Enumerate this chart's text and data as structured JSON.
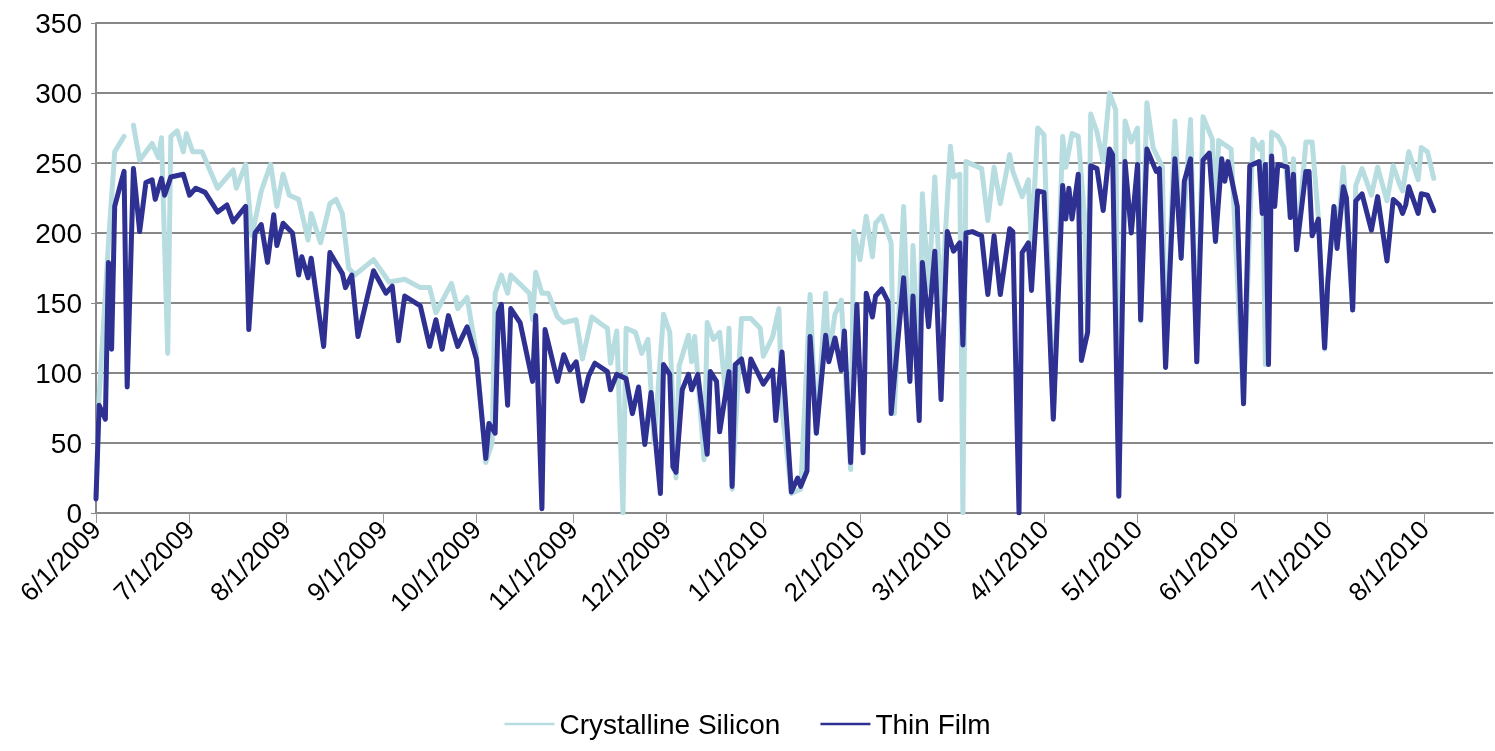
{
  "chart_data": {
    "type": "line",
    "xlim": [
      "2009-06-01",
      "2010-08-23"
    ],
    "xticks": [
      {
        "value": "2009-06-01",
        "label": "6/1/2009"
      },
      {
        "value": "2009-07-01",
        "label": "7/1/2009"
      },
      {
        "value": "2009-08-01",
        "label": "8/1/2009"
      },
      {
        "value": "2009-09-01",
        "label": "9/1/2009"
      },
      {
        "value": "2009-10-01",
        "label": "10/1/2009"
      },
      {
        "value": "2009-11-01",
        "label": "11/1/2009"
      },
      {
        "value": "2009-12-01",
        "label": "12/1/2009"
      },
      {
        "value": "2010-01-01",
        "label": "1/1/2010"
      },
      {
        "value": "2010-02-01",
        "label": "2/1/2010"
      },
      {
        "value": "2010-03-01",
        "label": "3/1/2010"
      },
      {
        "value": "2010-04-01",
        "label": "4/1/2010"
      },
      {
        "value": "2010-05-01",
        "label": "5/1/2010"
      },
      {
        "value": "2010-06-01",
        "label": "6/1/2010"
      },
      {
        "value": "2010-07-01",
        "label": "7/1/2010"
      },
      {
        "value": "2010-08-01",
        "label": "8/1/2010"
      }
    ],
    "ylim": [
      0,
      350
    ],
    "yticks": [
      0,
      50,
      100,
      150,
      200,
      250,
      300,
      350
    ],
    "grid": "y",
    "legend": "bottom",
    "marker": "none",
    "line_style": "solid",
    "series": [
      {
        "name": "Crystalline Silicon",
        "color": "#b7dde1",
        "x": [
          "2009-06-01",
          "2009-06-02",
          "2009-06-05",
          "2009-06-07",
          "2009-06-10",
          "2009-06-11",
          "2009-06-13",
          "2009-06-15",
          "2009-06-19",
          "2009-06-21",
          "2009-06-22",
          "2009-06-24",
          "2009-06-25",
          "2009-06-27",
          "2009-06-29",
          "2009-06-30",
          "2009-07-02",
          "2009-07-05",
          "2009-07-10",
          "2009-07-15",
          "2009-07-16",
          "2009-07-19",
          "2009-07-21",
          "2009-07-24",
          "2009-07-27",
          "2009-07-29",
          "2009-07-31",
          "2009-08-02",
          "2009-08-05",
          "2009-08-08",
          "2009-08-09",
          "2009-08-12",
          "2009-08-15",
          "2009-08-17",
          "2009-08-19",
          "2009-08-21",
          "2009-08-23",
          "2009-08-29",
          "2009-09-03",
          "2009-09-08",
          "2009-09-13",
          "2009-09-16",
          "2009-09-18",
          "2009-09-23",
          "2009-09-25",
          "2009-09-28",
          "2009-10-01",
          "2009-10-04",
          "2009-10-06",
          "2009-10-07",
          "2009-10-09",
          "2009-10-11",
          "2009-10-12",
          "2009-10-18",
          "2009-10-19",
          "2009-10-20",
          "2009-10-22",
          "2009-10-24",
          "2009-10-27",
          "2009-10-29",
          "2009-11-02",
          "2009-11-04",
          "2009-11-07",
          "2009-11-10",
          "2009-11-12",
          "2009-11-13",
          "2009-11-15",
          "2009-11-17",
          "2009-11-18",
          "2009-11-21",
          "2009-11-23",
          "2009-11-25",
          "2009-11-27",
          "2009-11-30",
          "2009-12-02",
          "2009-12-04",
          "2009-12-05",
          "2009-12-08",
          "2009-12-09",
          "2009-12-10",
          "2009-12-13",
          "2009-12-14",
          "2009-12-16",
          "2009-12-18",
          "2009-12-20",
          "2009-12-21",
          "2009-12-22",
          "2009-12-25",
          "2009-12-28",
          "2009-12-31",
          "2010-01-01",
          "2010-01-04",
          "2010-01-06",
          "2010-01-07",
          "2010-01-10",
          "2010-01-13",
          "2010-01-16",
          "2010-01-18",
          "2010-01-21",
          "2010-01-22",
          "2010-01-24",
          "2010-01-26",
          "2010-01-29",
          "2010-01-30",
          "2010-02-01",
          "2010-02-03",
          "2010-02-05",
          "2010-02-06",
          "2010-02-08",
          "2010-02-11",
          "2010-02-12",
          "2010-02-15",
          "2010-02-17",
          "2010-02-18",
          "2010-02-20",
          "2010-02-21",
          "2010-02-23",
          "2010-02-25",
          "2010-02-27",
          "2010-03-02",
          "2010-03-03",
          "2010-03-05",
          "2010-03-06",
          "2010-03-07",
          "2010-03-09",
          "2010-03-12",
          "2010-03-14",
          "2010-03-16",
          "2010-03-18",
          "2010-03-21",
          "2010-03-22",
          "2010-03-25",
          "2010-03-27",
          "2010-03-28",
          "2010-03-30",
          "2010-04-01",
          "2010-04-04",
          "2010-04-07",
          "2010-04-08",
          "2010-04-10",
          "2010-04-12",
          "2010-04-14",
          "2010-04-15",
          "2010-04-16",
          "2010-04-18",
          "2010-04-20",
          "2010-04-22",
          "2010-04-24",
          "2010-04-25",
          "2010-04-27",
          "2010-04-29",
          "2010-05-01",
          "2010-05-02",
          "2010-05-04",
          "2010-05-06",
          "2010-05-09",
          "2010-05-10",
          "2010-05-13",
          "2010-05-15",
          "2010-05-18",
          "2010-05-20",
          "2010-05-22",
          "2010-05-25",
          "2010-05-26",
          "2010-05-27",
          "2010-05-31",
          "2010-06-04",
          "2010-06-07",
          "2010-06-09",
          "2010-06-10",
          "2010-06-11",
          "2010-06-13",
          "2010-06-15",
          "2010-06-17",
          "2010-06-19",
          "2010-06-20",
          "2010-06-21",
          "2010-06-24",
          "2010-06-26",
          "2010-06-28",
          "2010-06-30",
          "2010-07-01",
          "2010-07-03",
          "2010-07-04",
          "2010-07-06",
          "2010-07-09",
          "2010-07-10",
          "2010-07-12",
          "2010-07-15",
          "2010-07-17",
          "2010-07-20",
          "2010-07-22",
          "2010-07-24",
          "2010-07-25",
          "2010-07-27",
          "2010-07-30",
          "2010-07-31",
          "2010-08-02",
          "2010-08-04"
        ],
        "values": [
          12,
          83,
          193,
          258,
          269,
          null,
          277,
          252,
          264,
          254,
          268,
          114,
          269,
          273,
          258,
          271,
          258,
          258,
          232,
          245,
          232,
          249,
          198,
          230,
          249,
          219,
          242,
          227,
          224,
          195,
          214,
          193,
          221,
          224,
          214,
          175,
          170,
          181,
          165,
          167,
          161,
          161,
          143,
          164,
          146,
          154,
          114,
          36,
          50,
          157,
          170,
          157,
          170,
          157,
          138,
          172,
          157,
          157,
          140,
          136,
          138,
          110,
          140,
          135,
          132,
          107,
          130,
          0,
          132,
          129,
          114,
          124,
          50,
          142,
          129,
          25,
          105,
          127,
          108,
          126,
          38,
          136,
          124,
          129,
          83,
          132,
          17,
          139,
          139,
          132,
          112,
          126,
          146,
          74,
          14,
          17,
          156,
          57,
          157,
          112,
          142,
          152,
          31,
          201,
          181,
          212,
          183,
          207,
          212,
          193,
          71,
          219,
          95,
          191,
          99,
          228,
          160,
          240,
          145,
          262,
          240,
          242,
          0,
          251,
          249,
          246,
          209,
          247,
          221,
          256,
          244,
          226,
          238,
          191,
          275,
          270,
          68,
          269,
          247,
          271,
          269,
          211,
          129,
          285,
          272,
          251,
          300,
          288,
          12,
          280,
          265,
          275,
          137,
          293,
          261,
          247,
          104,
          280,
          182,
          281,
          108,
          283,
          267,
          194,
          266,
          260,
          78,
          267,
          260,
          265,
          106,
          272,
          269,
          261,
          211,
          253,
          188,
          265,
          265,
          211,
          117,
          165,
          219,
          196,
          247,
          145,
          234,
          246,
          227,
          247,
          223,
          248,
          235,
          230,
          258,
          238,
          261,
          258,
          239
        ]
      },
      {
        "name": "Thin Film",
        "color": "#2e3192",
        "x": [
          "2009-06-01",
          "2009-06-02",
          "2009-06-04",
          "2009-06-05",
          "2009-06-06",
          "2009-06-07",
          "2009-06-09",
          "2009-06-10",
          "2009-06-11",
          "2009-06-13",
          "2009-06-15",
          "2009-06-17",
          "2009-06-19",
          "2009-06-20",
          "2009-06-22",
          "2009-06-23",
          "2009-06-25",
          "2009-06-29",
          "2009-07-01",
          "2009-07-03",
          "2009-07-06",
          "2009-07-10",
          "2009-07-13",
          "2009-07-15",
          "2009-07-19",
          "2009-07-20",
          "2009-07-22",
          "2009-07-24",
          "2009-07-26",
          "2009-07-28",
          "2009-07-29",
          "2009-07-31",
          "2009-08-03",
          "2009-08-05",
          "2009-08-06",
          "2009-08-08",
          "2009-08-09",
          "2009-08-13",
          "2009-08-15",
          "2009-08-19",
          "2009-08-20",
          "2009-08-22",
          "2009-08-24",
          "2009-08-29",
          "2009-09-02",
          "2009-09-04",
          "2009-09-06",
          "2009-09-08",
          "2009-09-13",
          "2009-09-16",
          "2009-09-18",
          "2009-09-20",
          "2009-09-22",
          "2009-09-25",
          "2009-09-28",
          "2009-10-01",
          "2009-10-04",
          "2009-10-05",
          "2009-10-07",
          "2009-10-08",
          "2009-10-09",
          "2009-10-11",
          "2009-10-12",
          "2009-10-15",
          "2009-10-19",
          "2009-10-20",
          "2009-10-22",
          "2009-10-23",
          "2009-10-27",
          "2009-10-29",
          "2009-10-31",
          "2009-11-02",
          "2009-11-04",
          "2009-11-06",
          "2009-11-08",
          "2009-11-12",
          "2009-11-13",
          "2009-11-15",
          "2009-11-18",
          "2009-11-20",
          "2009-11-22",
          "2009-11-24",
          "2009-11-26",
          "2009-11-29",
          "2009-11-30",
          "2009-12-02",
          "2009-12-03",
          "2009-12-04",
          "2009-12-06",
          "2009-12-08",
          "2009-12-09",
          "2009-12-11",
          "2009-12-14",
          "2009-12-15",
          "2009-12-17",
          "2009-12-18",
          "2009-12-21",
          "2009-12-22",
          "2009-12-23",
          "2009-12-25",
          "2009-12-27",
          "2009-12-28",
          "2010-01-01",
          "2010-01-04",
          "2010-01-05",
          "2010-01-07",
          "2010-01-08",
          "2010-01-10",
          "2010-01-12",
          "2010-01-13",
          "2010-01-15",
          "2010-01-16",
          "2010-01-18",
          "2010-01-21",
          "2010-01-22",
          "2010-01-24",
          "2010-01-26",
          "2010-01-27",
          "2010-01-29",
          "2010-01-31",
          "2010-02-02",
          "2010-02-03",
          "2010-02-05",
          "2010-02-06",
          "2010-02-08",
          "2010-02-10",
          "2010-02-11",
          "2010-02-15",
          "2010-02-17",
          "2010-02-18",
          "2010-02-20",
          "2010-02-21",
          "2010-02-23",
          "2010-02-25",
          "2010-02-27",
          "2010-03-01",
          "2010-03-03",
          "2010-03-05",
          "2010-03-06",
          "2010-03-07",
          "2010-03-09",
          "2010-03-12",
          "2010-03-14",
          "2010-03-16",
          "2010-03-18",
          "2010-03-21",
          "2010-03-22",
          "2010-03-24",
          "2010-03-25",
          "2010-03-27",
          "2010-03-28",
          "2010-03-30",
          "2010-04-01",
          "2010-04-04",
          "2010-04-07",
          "2010-04-08",
          "2010-04-09",
          "2010-04-10",
          "2010-04-12",
          "2010-04-13",
          "2010-04-15",
          "2010-04-16",
          "2010-04-18",
          "2010-04-20",
          "2010-04-22",
          "2010-04-23",
          "2010-04-25",
          "2010-04-27",
          "2010-04-29",
          "2010-05-01",
          "2010-05-02",
          "2010-05-04",
          "2010-05-07",
          "2010-05-08",
          "2010-05-10",
          "2010-05-13",
          "2010-05-15",
          "2010-05-16",
          "2010-05-18",
          "2010-05-20",
          "2010-05-22",
          "2010-05-24",
          "2010-05-26",
          "2010-05-28",
          "2010-05-29",
          "2010-05-30",
          "2010-06-02",
          "2010-06-04",
          "2010-06-06",
          "2010-06-09",
          "2010-06-10",
          "2010-06-11",
          "2010-06-12",
          "2010-06-13",
          "2010-06-14",
          "2010-06-15",
          "2010-06-18",
          "2010-06-19",
          "2010-06-20",
          "2010-06-21",
          "2010-06-24",
          "2010-06-25",
          "2010-06-26",
          "2010-06-28",
          "2010-06-30",
          "2010-07-01",
          "2010-07-03",
          "2010-07-04",
          "2010-07-06",
          "2010-07-07",
          "2010-07-09",
          "2010-07-10",
          "2010-07-12",
          "2010-07-15",
          "2010-07-17",
          "2010-07-20",
          "2010-07-22",
          "2010-07-24",
          "2010-07-25",
          "2010-07-26",
          "2010-07-27",
          "2010-07-30",
          "2010-07-31",
          "2010-08-02",
          "2010-08-04"
        ],
        "values": [
          10,
          77,
          67,
          179,
          117,
          219,
          236,
          244,
          90,
          246,
          201,
          236,
          238,
          224,
          239,
          227,
          240,
          242,
          227,
          232,
          229,
          215,
          220,
          208,
          219,
          131,
          200,
          206,
          179,
          213,
          191,
          207,
          200,
          170,
          183,
          168,
          182,
          119,
          186,
          171,
          161,
          170,
          126,
          173,
          157,
          162,
          123,
          155,
          148,
          119,
          138,
          117,
          141,
          119,
          133,
          110,
          39,
          64,
          57,
          143,
          149,
          77,
          146,
          136,
          94,
          141,
          3,
          131,
          94,
          113,
          102,
          108,
          80,
          98,
          107,
          101,
          88,
          99,
          96,
          71,
          90,
          49,
          86,
          14,
          106,
          99,
          33,
          29,
          88,
          99,
          88,
          99,
          42,
          101,
          94,
          58,
          101,
          19,
          106,
          110,
          87,
          110,
          92,
          102,
          66,
          115,
          82,
          15,
          25,
          19,
          30,
          126,
          57,
          127,
          108,
          125,
          102,
          130,
          36,
          149,
          43,
          157,
          140,
          155,
          160,
          151,
          71,
          168,
          94,
          155,
          66,
          179,
          133,
          187,
          81,
          201,
          187,
          193,
          120,
          200,
          201,
          198,
          156,
          198,
          156,
          203,
          201,
          0,
          186,
          193,
          159,
          230,
          229,
          67,
          234,
          210,
          232,
          210,
          242,
          109,
          129,
          248,
          246,
          216,
          260,
          256,
          12,
          251,
          200,
          249,
          138,
          260,
          244,
          246,
          104,
          253,
          182,
          237,
          253,
          108,
          252,
          257,
          194,
          253,
          237,
          251,
          219,
          78,
          248,
          251,
          214,
          249,
          106,
          255,
          219,
          249,
          247,
          211,
          242,
          188,
          244,
          244,
          198,
          210,
          118,
          164,
          219,
          189,
          233,
          225,
          145,
          223,
          228,
          202,
          226,
          180,
          224,
          220,
          214,
          220,
          233,
          214,
          228,
          227,
          216
        ]
      }
    ]
  }
}
